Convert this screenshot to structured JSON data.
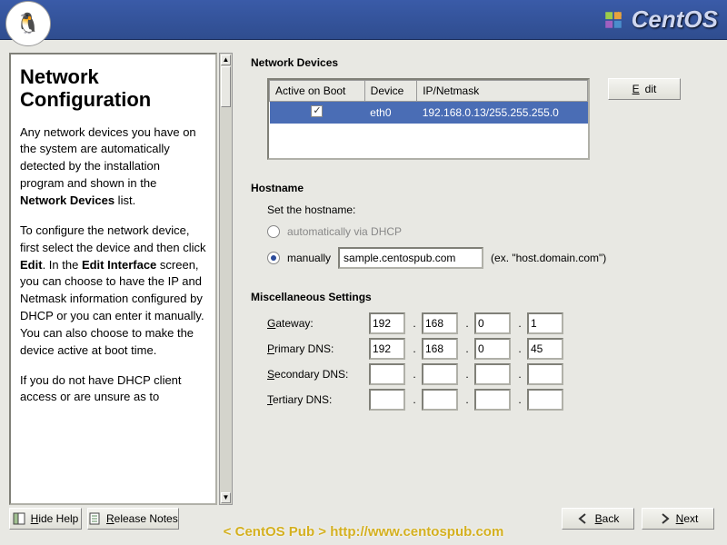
{
  "header": {
    "brand": "CentOS",
    "brand_color": "#cfd7f0",
    "gradient_top": "#3a5ba8",
    "gradient_bottom": "#2f4d8f"
  },
  "help": {
    "title": "Network Configuration",
    "para1_a": "Any network devices you have on the system are automatically detected by the installation program and shown in the ",
    "para1_b": "Network Devices",
    "para1_c": " list.",
    "para2_a": "To configure the network device, first select the device and then click ",
    "para2_b": "Edit",
    "para2_c": ". In the ",
    "para2_d": "Edit Interface",
    "para2_e": " screen, you can choose to have the IP and Netmask information configured by DHCP or you can enter it manually. You can also choose to make the device active at boot time.",
    "para3": "If you do not have DHCP client access or are unsure as to"
  },
  "devices": {
    "section_title": "Network Devices",
    "columns": [
      "Active on Boot",
      "Device",
      "IP/Netmask"
    ],
    "row": {
      "active": true,
      "device": "eth0",
      "ipmask": "192.168.0.13/255.255.255.0"
    },
    "selection_color": "#4a6db5",
    "edit_label": "Edit"
  },
  "hostname": {
    "section_title": "Hostname",
    "set_label": "Set the hostname:",
    "auto_label": "automatically via DHCP",
    "manual_label": "manually",
    "manual_selected": true,
    "value": "sample.centospub.com",
    "hint": "(ex. \"host.domain.com\")"
  },
  "misc": {
    "section_title": "Miscellaneous Settings",
    "rows": [
      {
        "label_u": "G",
        "label_rest": "ateway:",
        "ip": [
          "192",
          "168",
          "0",
          "1"
        ]
      },
      {
        "label_u": "P",
        "label_rest": "rimary DNS:",
        "ip": [
          "192",
          "168",
          "0",
          "45"
        ]
      },
      {
        "label_u": "S",
        "label_rest": "econdary DNS:",
        "ip": [
          "",
          "",
          "",
          ""
        ]
      },
      {
        "label_u": "T",
        "label_rest": "ertiary DNS:",
        "ip": [
          "",
          "",
          "",
          ""
        ]
      }
    ]
  },
  "footer": {
    "hide_help": "Hide Help",
    "release_notes": "Release Notes",
    "back": "Back",
    "next": "Next"
  },
  "watermark": "< CentOS Pub > http://www.centospub.com"
}
